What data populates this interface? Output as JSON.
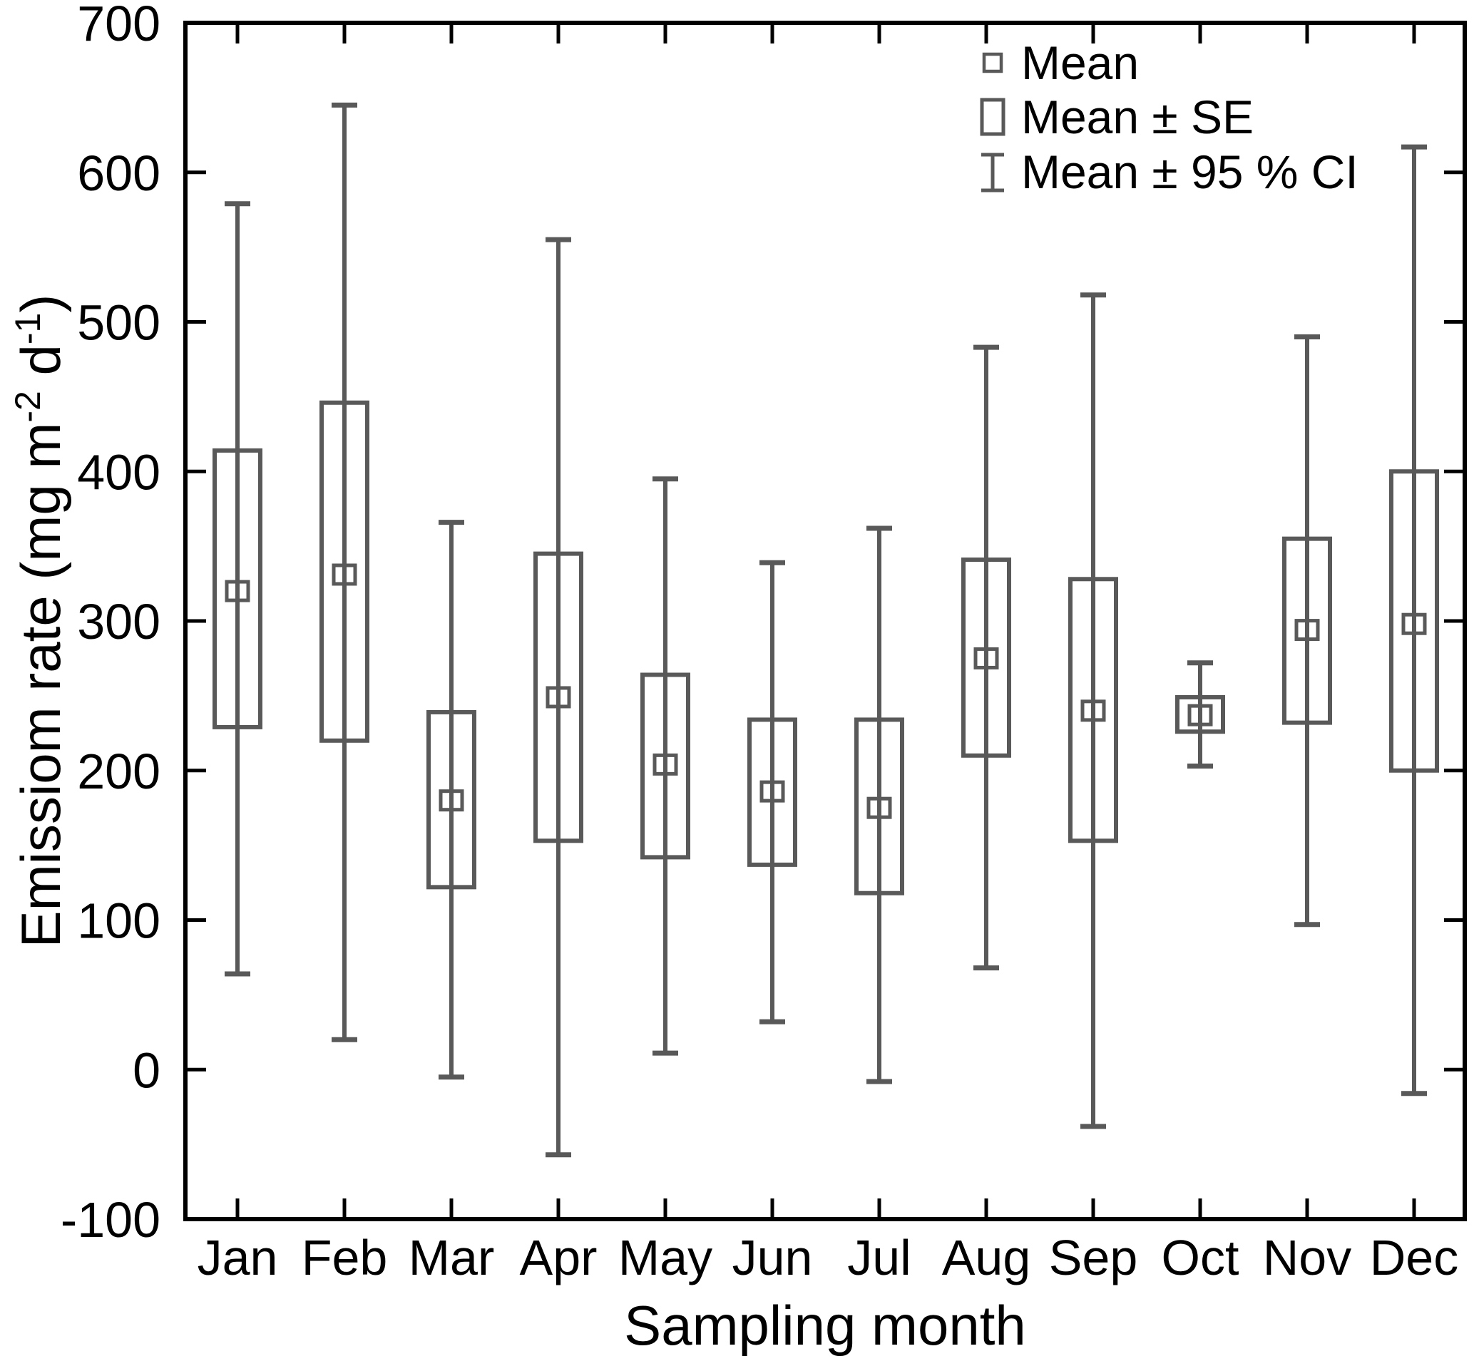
{
  "chart_data": {
    "type": "box-whisker-errorbar",
    "title": "",
    "xlabel": "Sampling month",
    "ylabel_parts": {
      "main": "Emissiom rate (mg m",
      "sup1": "-2",
      "mid": " d",
      "sup2": "-1",
      "end": ")"
    },
    "ylim": [
      -100,
      700
    ],
    "ytick_step": 100,
    "ytick_labels": [
      "700",
      "600",
      "500",
      "400",
      "300",
      "200",
      "100",
      "0",
      "-100"
    ],
    "categories": [
      "Jan",
      "Feb",
      "Mar",
      "Apr",
      "May",
      "Jun",
      "Jul",
      "Aug",
      "Sep",
      "Oct",
      "Nov",
      "Dec"
    ],
    "series": [
      {
        "month": "Jan",
        "mean": 320,
        "se_low": 229,
        "se_high": 414,
        "ci_low": 64,
        "ci_high": 579
      },
      {
        "month": "Feb",
        "mean": 331,
        "se_low": 220,
        "se_high": 446,
        "ci_low": 20,
        "ci_high": 645
      },
      {
        "month": "Mar",
        "mean": 180,
        "se_low": 122,
        "se_high": 239,
        "ci_low": -5,
        "ci_high": 366
      },
      {
        "month": "Apr",
        "mean": 249,
        "se_low": 153,
        "se_high": 345,
        "ci_low": -57,
        "ci_high": 555
      },
      {
        "month": "May",
        "mean": 204,
        "se_low": 142,
        "se_high": 264,
        "ci_low": 11,
        "ci_high": 395
      },
      {
        "month": "Jun",
        "mean": 186,
        "se_low": 137,
        "se_high": 234,
        "ci_low": 32,
        "ci_high": 339
      },
      {
        "month": "Jul",
        "mean": 175,
        "se_low": 118,
        "se_high": 234,
        "ci_low": -8,
        "ci_high": 362
      },
      {
        "month": "Aug",
        "mean": 275,
        "se_low": 210,
        "se_high": 341,
        "ci_low": 68,
        "ci_high": 483
      },
      {
        "month": "Sep",
        "mean": 240,
        "se_low": 153,
        "se_high": 328,
        "ci_low": -38,
        "ci_high": 518
      },
      {
        "month": "Oct",
        "mean": 237,
        "se_low": 226,
        "se_high": 249,
        "ci_low": 203,
        "ci_high": 272
      },
      {
        "month": "Nov",
        "mean": 294,
        "se_low": 232,
        "se_high": 355,
        "ci_low": 97,
        "ci_high": 490
      },
      {
        "month": "Dec",
        "mean": 298,
        "se_low": 200,
        "se_high": 400,
        "ci_low": -16,
        "ci_high": 617
      }
    ],
    "legend": [
      {
        "symbol": "mean-square",
        "label": "Mean"
      },
      {
        "symbol": "se-box",
        "label": "Mean ± SE"
      },
      {
        "symbol": "ci-whisker",
        "label": "Mean ± 95 % CI"
      }
    ],
    "legend_position": "top-right",
    "grid": false,
    "colors": {
      "series": "#595959",
      "axis": "#000000",
      "text": "#000000",
      "background": "#ffffff"
    }
  }
}
